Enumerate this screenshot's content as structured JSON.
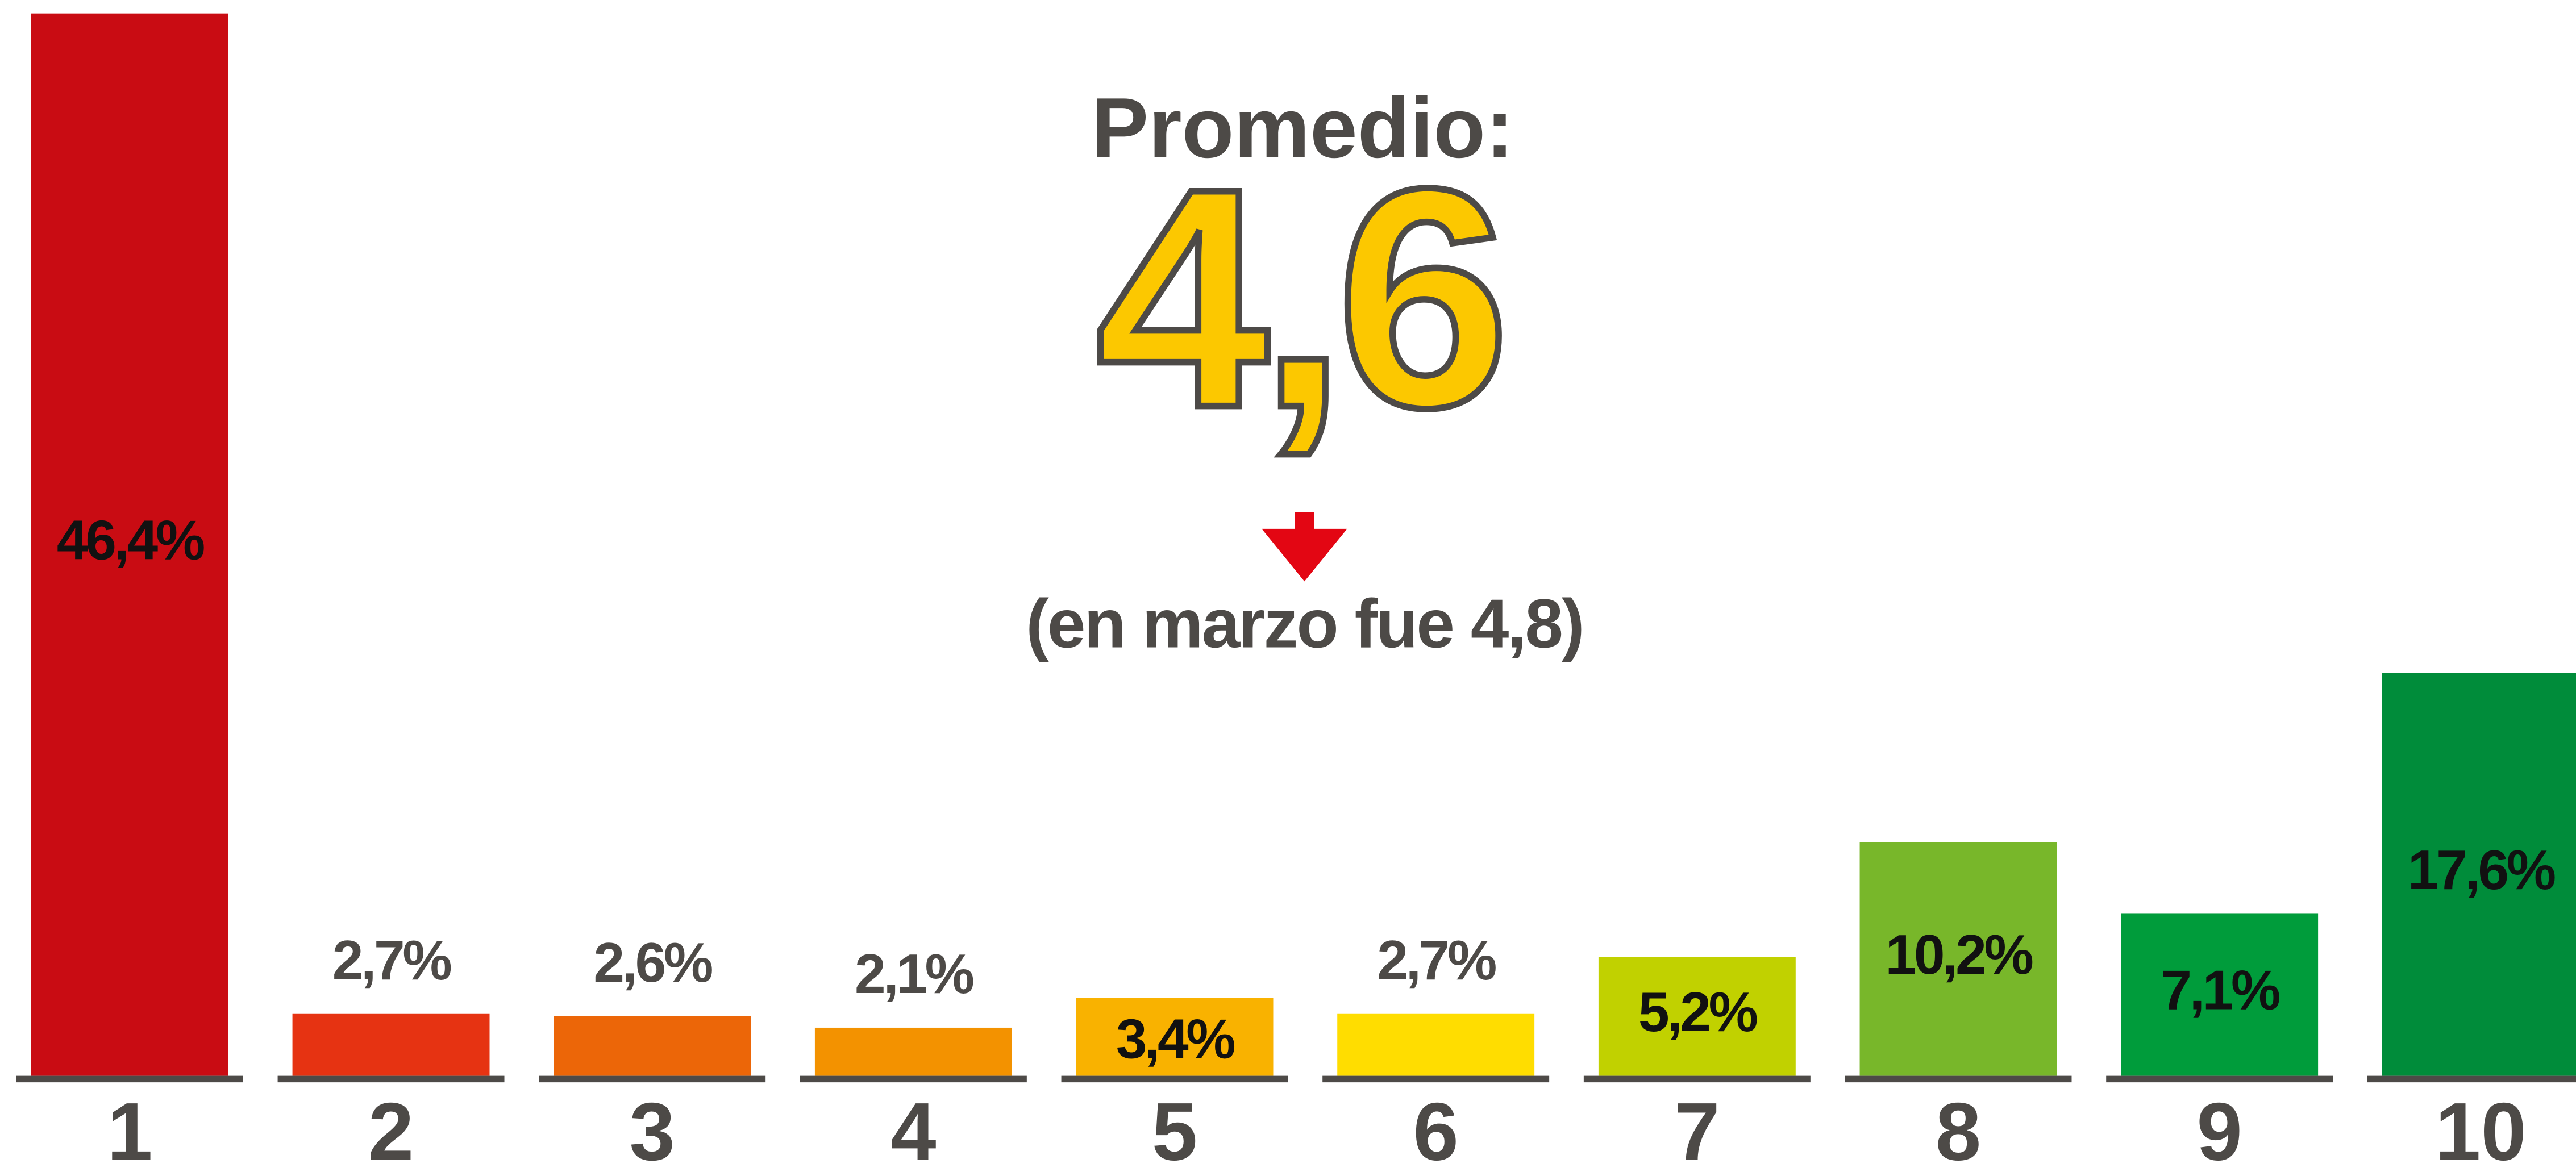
{
  "chart_data": {
    "type": "bar",
    "title": "Promedio:",
    "annotations": [
      "4,6",
      "(en marzo fue 4,8)"
    ],
    "categories": [
      "1",
      "2",
      "3",
      "4",
      "5",
      "6",
      "7",
      "8",
      "9",
      "10"
    ],
    "values": [
      46.4,
      2.7,
      2.6,
      2.1,
      3.4,
      2.7,
      5.2,
      10.2,
      7.1,
      17.6
    ],
    "value_labels": [
      "46,4%",
      "2,7%",
      "2,6%",
      "2,1%",
      "3,4%",
      "2,7%",
      "5,2%",
      "10,2%",
      "7,1%",
      "17,6%"
    ],
    "colors": [
      "#c90c13",
      "#e63312",
      "#ec6608",
      "#f39200",
      "#f9b200",
      "#ffdd00",
      "#c1d100",
      "#78b72a",
      "#009c3b",
      "#008c3a"
    ]
  }
}
